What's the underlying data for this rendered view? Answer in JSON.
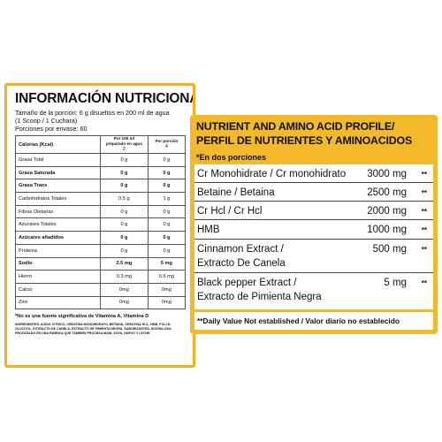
{
  "left": {
    "title": "INFORMACIÓN NUTRICIONAL",
    "serving_line1": "Tamaño de la porción: 6 g disueltos en 200 ml de agua",
    "serving_line2": "(1 Scoop / 1 Cuchara)",
    "servings_per_container": "Porciones por envase: 60",
    "header": {
      "label": "Calorias (Kcal)",
      "col1_top": "Por 100 ml preparado en agua",
      "col1": "2",
      "col2_top": "Por porción",
      "col2": "4"
    },
    "rows": [
      {
        "label": "Grasa Total",
        "c1": "0 g",
        "c2": "0 g"
      },
      {
        "label": "Grasa Saturada",
        "c1": "0 g",
        "c2": "0 g"
      },
      {
        "label": "Grasa Trans",
        "c1": "0 g",
        "c2": "0 g"
      },
      {
        "label": "Carbohidratos Totales",
        "c1": "0.5 g",
        "c2": "1 g"
      },
      {
        "label": "Fibras Dietarias",
        "c1": "0 g",
        "c2": "0 g"
      },
      {
        "label": "Azucares Totales",
        "c1": "0 g",
        "c2": "0 g"
      },
      {
        "label": "Azúcares añadidos",
        "c1": "0 g",
        "c2": "0 g"
      },
      {
        "label": "Proteina",
        "c1": "0 g",
        "c2": "0 g"
      },
      {
        "label": "Sodio",
        "c1": "2.5 mg",
        "c2": "5 mg"
      },
      {
        "label": "Hierro",
        "c1": "0.3 mg",
        "c2": "0.6 mg"
      },
      {
        "label": "Calcio",
        "c1": "0mg",
        "c2": "0mg"
      },
      {
        "label": "Zinc",
        "c1": "0mg",
        "c2": "0mg"
      }
    ],
    "note": "*No es una fuente significativa de Vitamina A, Vitamina D",
    "ingredients": "INGREDIENTES: ACIDO CITRICO, CREATINA MONOHIDRATO, BETAINA, CREATINA HCL, HMB, POLI-D-GLUCITOL, EXTRACTO DE CANELA, EXTRACTO DE PIMIENTA NEGRA, SABORIZANTES, SUCRALOSA. PROCESADO EN UNA FABRICA QUE TAMBIEN PROCESA MANI, SOYA, HUEVO Y LECHE."
  },
  "right": {
    "title_line1": "NUTRIENT AND AMINO ACID PROFILE/",
    "title_line2": "PERFIL DE NUTRIENTES Y AMINOACIDOS",
    "portion": "*En dos porciones",
    "rows": [
      {
        "name1": "Cr Monohidrate / Cr monohidrato",
        "name2": "",
        "amount": "3000 mg",
        "star": "**"
      },
      {
        "name1": "Betaine / Betaina",
        "name2": "",
        "amount": "2500 mg",
        "star": "**"
      },
      {
        "name1": "Cr Hcl / Cr Hcl",
        "name2": "",
        "amount": "2000 mg",
        "star": "**"
      },
      {
        "name1": "HMB",
        "name2": "",
        "amount": "1000 mg",
        "star": "**"
      },
      {
        "name1": "Cinnamon Extract /",
        "name2": "Extracto De Canela",
        "amount": "500 mg",
        "star": "**"
      },
      {
        "name1": "Black pepper Extract /",
        "name2": "Extracto de Pimienta Negra",
        "amount": "5 mg",
        "star": "**"
      }
    ],
    "footer": "**Daily Value Not established / Valor diario no establecido"
  }
}
